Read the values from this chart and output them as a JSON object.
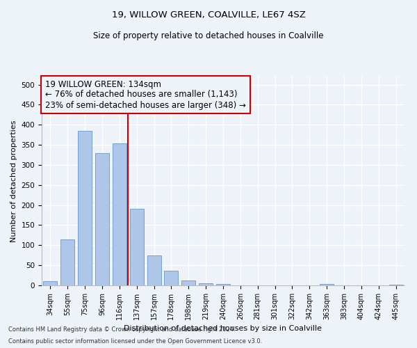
{
  "title1": "19, WILLOW GREEN, COALVILLE, LE67 4SZ",
  "title2": "Size of property relative to detached houses in Coalville",
  "xlabel": "Distribution of detached houses by size in Coalville",
  "ylabel": "Number of detached properties",
  "footer1": "Contains HM Land Registry data © Crown copyright and database right 2024.",
  "footer2": "Contains public sector information licensed under the Open Government Licence v3.0.",
  "bar_labels": [
    "34sqm",
    "55sqm",
    "75sqm",
    "96sqm",
    "116sqm",
    "137sqm",
    "157sqm",
    "178sqm",
    "198sqm",
    "219sqm",
    "240sqm",
    "260sqm",
    "281sqm",
    "301sqm",
    "322sqm",
    "342sqm",
    "363sqm",
    "383sqm",
    "404sqm",
    "424sqm",
    "445sqm"
  ],
  "bar_values": [
    11,
    115,
    385,
    330,
    353,
    190,
    75,
    37,
    12,
    5,
    4,
    0,
    0,
    0,
    0,
    0,
    3,
    0,
    0,
    0,
    2
  ],
  "bar_color": "#aec6e8",
  "bar_edgecolor": "#6699cc",
  "property_label": "19 WILLOW GREEN: 134sqm",
  "annotation_line1": "← 76% of detached houses are smaller (1,143)",
  "annotation_line2": "23% of semi-detached houses are larger (348) →",
  "vline_color": "#cc0000",
  "vline_bin_index": 5,
  "ylim": [
    0,
    520
  ],
  "yticks": [
    0,
    50,
    100,
    150,
    200,
    250,
    300,
    350,
    400,
    450,
    500
  ],
  "background_color": "#eef2f9",
  "grid_color": "#ffffff",
  "annotation_box_edgecolor": "#cc0000",
  "annotation_fontsize": 8.5,
  "title1_fontsize": 9.5,
  "title2_fontsize": 8.5,
  "xlabel_fontsize": 8,
  "ylabel_fontsize": 8,
  "tick_fontsize": 7,
  "footer_fontsize": 6
}
